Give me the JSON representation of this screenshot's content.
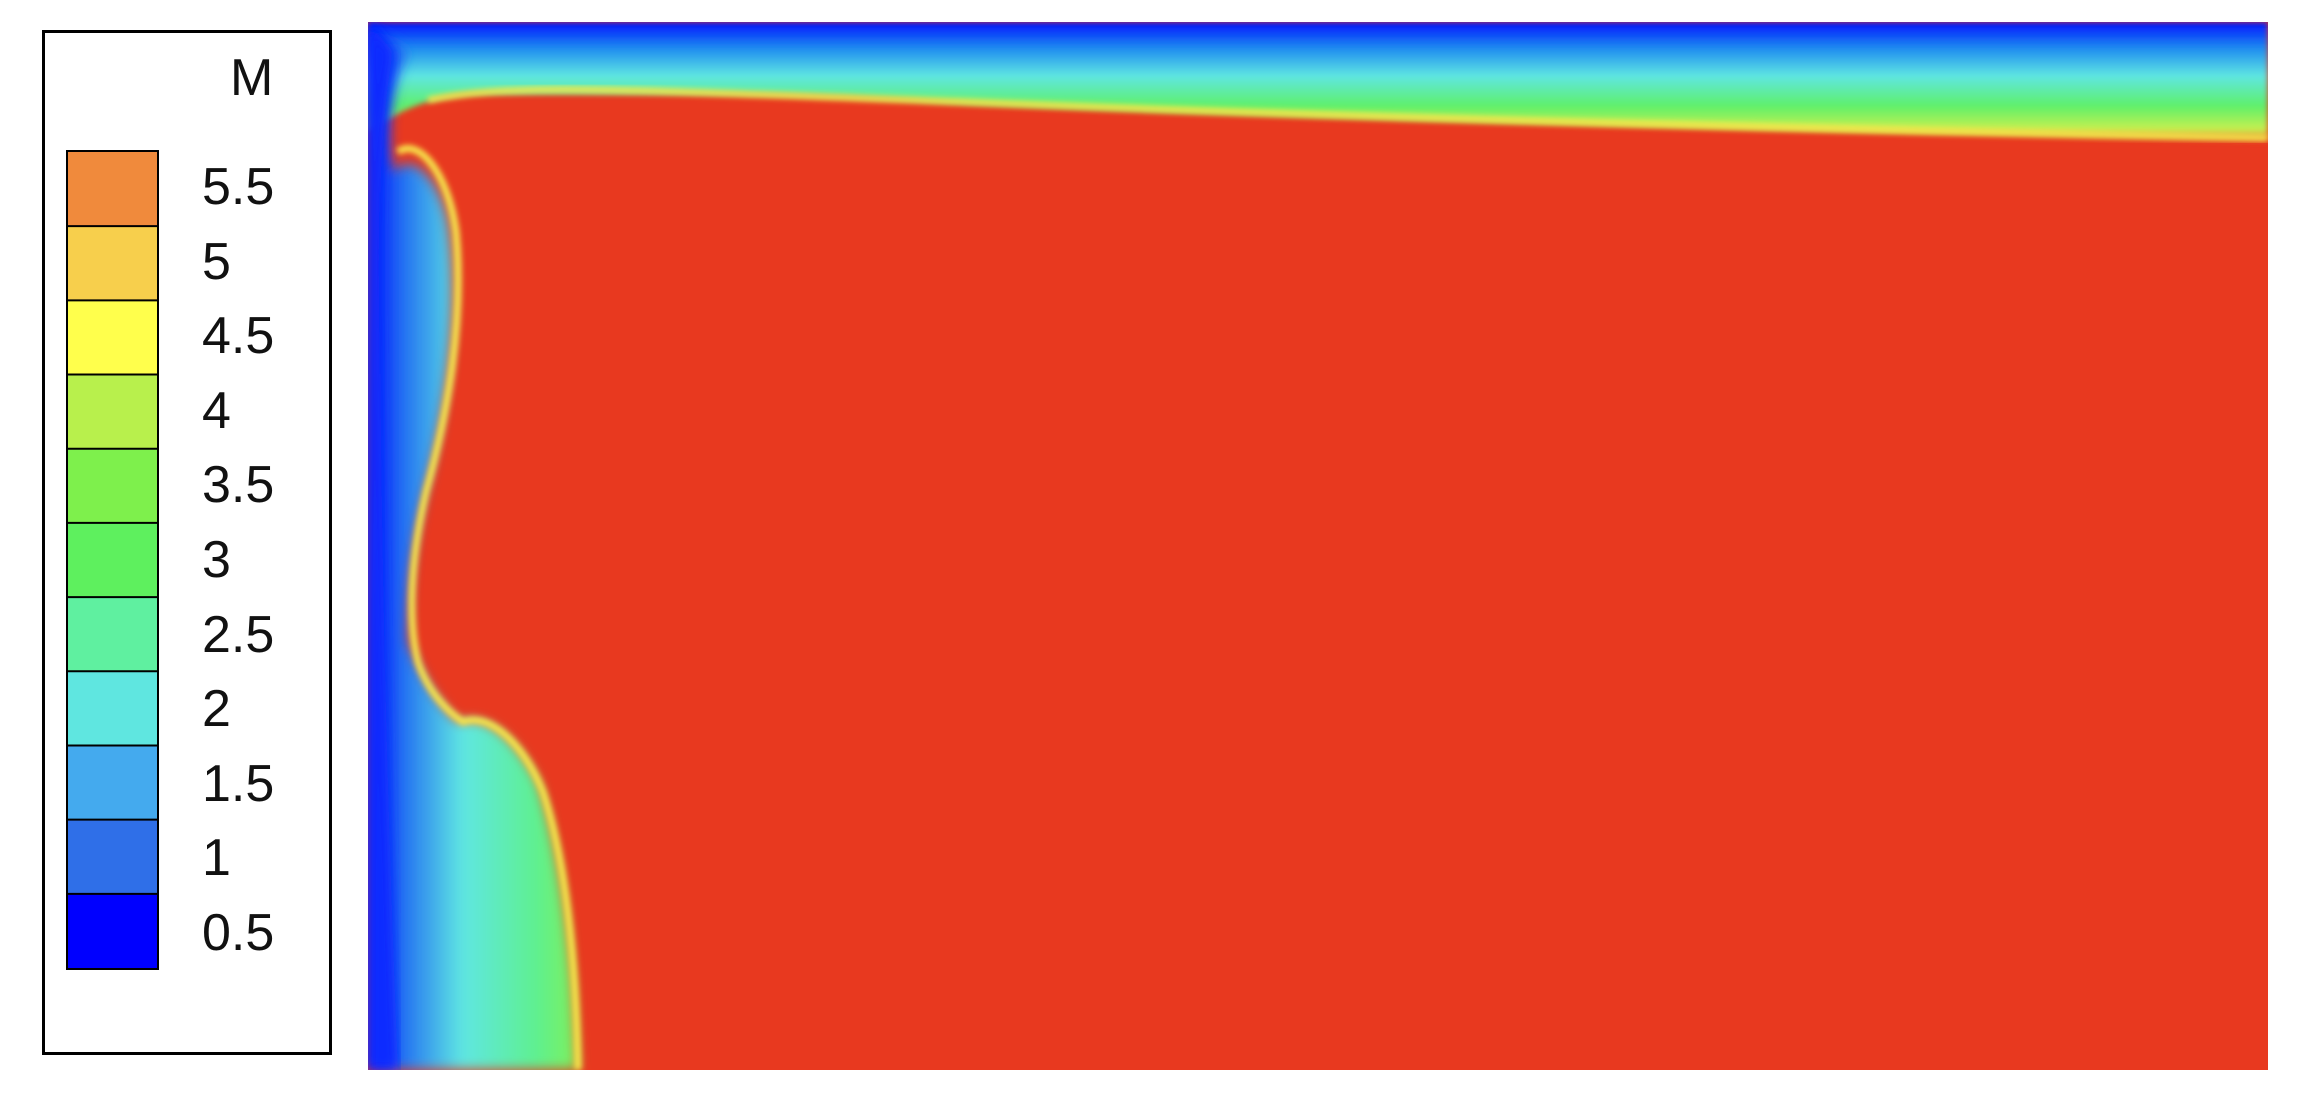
{
  "chart_data": {
    "type": "heatmap",
    "title": "",
    "xlabel": "",
    "ylabel": "",
    "colorbar": {
      "label": "M",
      "ticks": [
        "5.5",
        "5",
        "4.5",
        "4",
        "3.5",
        "3",
        "2.5",
        "2",
        "1.5",
        "1",
        "0.5"
      ],
      "range": [
        0.25,
        5.75
      ],
      "levels": [
        0.25,
        0.75,
        1.25,
        1.75,
        2.25,
        2.75,
        3.25,
        3.75,
        4.25,
        4.75,
        5.25,
        5.75
      ],
      "colormap": [
        "#0000ff",
        "#2f6fe8",
        "#44aaee",
        "#5fe6e0",
        "#5ff0a0",
        "#5ef05e",
        "#7ef04c",
        "#b8f04c",
        "#ffff4c",
        "#f7cf4c",
        "#f08a3c",
        "#e53a22"
      ]
    },
    "field": {
      "free_stream_value": 5.5,
      "wall_value": 0.0,
      "shear_layer_value": 3.5,
      "description_of_regions": [
        "high-speed core",
        "top boundary layer",
        "left-wall vortex layer"
      ]
    }
  },
  "colors": {
    "core": "#e8391f",
    "wall": "#0012ff",
    "mid": "#5ef06a",
    "cyan": "#5fe8e6"
  }
}
